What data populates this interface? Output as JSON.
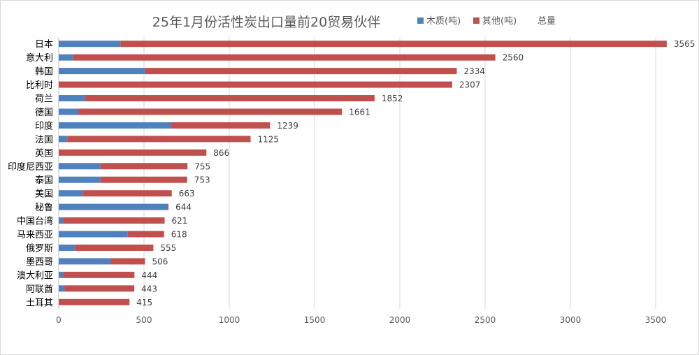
{
  "chart_data": {
    "type": "bar",
    "orientation": "horizontal",
    "stacked": true,
    "title": "25年1月份活性炭出口量前20贸易伙伴",
    "legend": {
      "placement": "top-right",
      "entries": [
        "木质(吨)",
        "其他(吨)",
        "总量"
      ]
    },
    "categories": [
      "日本",
      "意大利",
      "韩国",
      "比利时",
      "荷兰",
      "德国",
      "印度",
      "法国",
      "英国",
      "印度尼西亚",
      "泰国",
      "美国",
      "秘鲁",
      "中国台湾",
      "马来西亚",
      "俄罗斯",
      "墨西哥",
      "澳大利亚",
      "阿联酋",
      "土耳其"
    ],
    "series": [
      {
        "name": "木质(吨)",
        "color": "#4f81bd",
        "values": [
          362,
          85,
          508,
          0,
          155,
          115,
          660,
          50,
          0,
          245,
          245,
          140,
          640,
          25,
          405,
          95,
          305,
          25,
          35,
          0
        ]
      },
      {
        "name": "其他(吨)",
        "color": "#c0504d",
        "values": [
          3203,
          2475,
          1826,
          2307,
          1697,
          1546,
          579,
          1075,
          866,
          510,
          508,
          523,
          4,
          596,
          213,
          460,
          201,
          419,
          408,
          415
        ]
      }
    ],
    "totals": [
      3565,
      2560,
      2334,
      2307,
      1852,
      1661,
      1239,
      1125,
      866,
      755,
      753,
      663,
      644,
      621,
      618,
      555,
      506,
      444,
      443,
      415
    ],
    "xlim": [
      0,
      3500
    ],
    "xticks": [
      0,
      500,
      1000,
      1500,
      2000,
      2500,
      3000,
      3500
    ],
    "grid": "vertical"
  }
}
